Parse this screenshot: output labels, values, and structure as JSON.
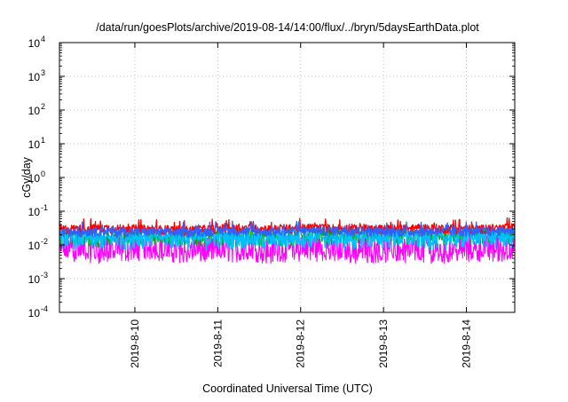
{
  "chart_data": {
    "type": "line",
    "title": "/data/run/goesPlots/archive/2019-08-14/14:00/flux/../bryn/5daysEarthData.plot",
    "xlabel": "Coordinated Universal Time (UTC)",
    "ylabel": "cGy/day",
    "x_scale": "time",
    "y_scale": "log",
    "xlim": [
      "2019-08-09T02:10",
      "2019-08-14T14:00"
    ],
    "ylim": [
      0.0001,
      10000
    ],
    "grid": true,
    "legend": "none",
    "x_ticks": [
      {
        "value": "2019-08-10T00:00",
        "label": "2019-8-10"
      },
      {
        "value": "2019-08-11T00:00",
        "label": "2019-8-11"
      },
      {
        "value": "2019-08-12T00:00",
        "label": "2019-8-12"
      },
      {
        "value": "2019-08-13T00:00",
        "label": "2019-8-13"
      },
      {
        "value": "2019-08-14T00:00",
        "label": "2019-8-14"
      }
    ],
    "y_ticks": [
      {
        "value": 0.0001,
        "base": "10",
        "exp": "-4"
      },
      {
        "value": 0.001,
        "base": "10",
        "exp": "-3"
      },
      {
        "value": 0.01,
        "base": "10",
        "exp": "-2"
      },
      {
        "value": 0.1,
        "base": "10",
        "exp": "-1"
      },
      {
        "value": 1,
        "base": "10",
        "exp": "0"
      },
      {
        "value": 10,
        "base": "10",
        "exp": "1"
      },
      {
        "value": 100,
        "base": "10",
        "exp": "2"
      },
      {
        "value": 1000,
        "base": "10",
        "exp": "3"
      },
      {
        "value": 10000,
        "base": "10",
        "exp": "4"
      }
    ],
    "series": [
      {
        "color": "#ff0000",
        "x": [
          "2019-08-09T03:00",
          "2019-08-09T15:00",
          "2019-08-10T03:00",
          "2019-08-10T15:00",
          "2019-08-11T03:00",
          "2019-08-11T15:00",
          "2019-08-12T03:00",
          "2019-08-12T15:00",
          "2019-08-13T03:00",
          "2019-08-13T15:00",
          "2019-08-14T03:00",
          "2019-08-14T13:00"
        ],
        "values": [
          0.03,
          0.032,
          0.03,
          0.028,
          0.032,
          0.03,
          0.033,
          0.031,
          0.03,
          0.032,
          0.03,
          0.033
        ]
      },
      {
        "color": "#00aa00",
        "x": [
          "2019-08-09T03:00",
          "2019-08-09T15:00",
          "2019-08-10T03:00",
          "2019-08-10T15:00",
          "2019-08-11T03:00",
          "2019-08-11T15:00",
          "2019-08-12T03:00",
          "2019-08-12T15:00",
          "2019-08-13T03:00",
          "2019-08-13T15:00",
          "2019-08-14T03:00",
          "2019-08-14T13:00"
        ],
        "values": [
          0.018,
          0.015,
          0.02,
          0.016,
          0.018,
          0.015,
          0.02,
          0.017,
          0.018,
          0.016,
          0.02,
          0.018
        ]
      },
      {
        "color": "#ff00ff",
        "x": [
          "2019-08-09T03:00",
          "2019-08-09T15:00",
          "2019-08-10T03:00",
          "2019-08-10T15:00",
          "2019-08-11T03:00",
          "2019-08-11T15:00",
          "2019-08-12T03:00",
          "2019-08-12T15:00",
          "2019-08-13T03:00",
          "2019-08-13T15:00",
          "2019-08-14T03:00",
          "2019-08-14T13:00"
        ],
        "values": [
          0.006,
          0.005,
          0.0065,
          0.005,
          0.0055,
          0.005,
          0.006,
          0.005,
          0.0055,
          0.005,
          0.006,
          0.0055
        ]
      },
      {
        "color": "#3060ff",
        "x": [
          "2019-08-09T03:00",
          "2019-08-09T15:00",
          "2019-08-10T03:00",
          "2019-08-10T15:00",
          "2019-08-11T03:00",
          "2019-08-11T15:00",
          "2019-08-12T03:00",
          "2019-08-12T15:00",
          "2019-08-13T03:00",
          "2019-08-13T15:00",
          "2019-08-14T03:00",
          "2019-08-14T13:00"
        ],
        "values": [
          0.024,
          0.026,
          0.025,
          0.024,
          0.027,
          0.025,
          0.028,
          0.026,
          0.025,
          0.026,
          0.025,
          0.027
        ]
      },
      {
        "color": "#00c0ff",
        "x": [
          "2019-08-09T03:00",
          "2019-08-09T15:00",
          "2019-08-10T03:00",
          "2019-08-10T15:00",
          "2019-08-11T03:00",
          "2019-08-11T15:00",
          "2019-08-12T03:00",
          "2019-08-12T15:00",
          "2019-08-13T03:00",
          "2019-08-13T15:00",
          "2019-08-14T03:00",
          "2019-08-14T13:00"
        ],
        "values": [
          0.015,
          0.013,
          0.016,
          0.014,
          0.015,
          0.013,
          0.016,
          0.014,
          0.015,
          0.014,
          0.016,
          0.015
        ]
      }
    ]
  }
}
